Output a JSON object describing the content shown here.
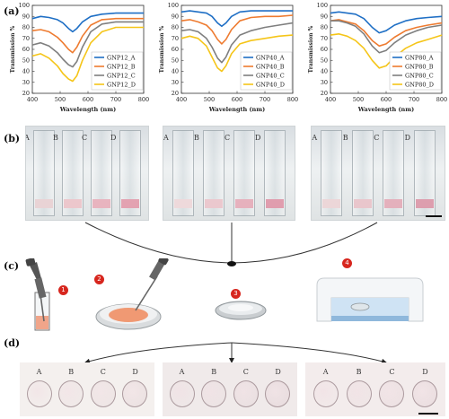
{
  "panels": {
    "a": "(a)",
    "b": "(b)",
    "c": "(c)",
    "d": "(d)"
  },
  "colors": {
    "A": "#1f6fc5",
    "B": "#ee7b30",
    "C": "#7f7f7f",
    "D": "#f5c518"
  },
  "chart_data": [
    {
      "type": "line",
      "xlabel": "Wavelength (nm)",
      "ylabel": "Transmission %",
      "xlim": [
        400,
        800
      ],
      "ylim": [
        20,
        100
      ],
      "xticks": [
        400,
        500,
        600,
        700,
        800
      ],
      "yticks": [
        20,
        30,
        40,
        50,
        60,
        70,
        80,
        90,
        100
      ],
      "legend": "bottom-right",
      "series": [
        {
          "name": "GNP12_A",
          "x": [
            400,
            430,
            460,
            490,
            510,
            530,
            545,
            560,
            580,
            610,
            650,
            700,
            750,
            800
          ],
          "values": [
            88,
            90,
            89,
            87,
            84,
            79,
            76,
            79,
            85,
            90,
            92,
            93,
            93,
            93
          ]
        },
        {
          "name": "GNP12_B",
          "x": [
            400,
            430,
            460,
            490,
            510,
            530,
            545,
            560,
            580,
            610,
            650,
            700,
            750,
            800
          ],
          "values": [
            77,
            78,
            76,
            71,
            66,
            60,
            57,
            62,
            72,
            82,
            87,
            88,
            88,
            88
          ]
        },
        {
          "name": "GNP12_C",
          "x": [
            400,
            430,
            460,
            490,
            510,
            530,
            545,
            560,
            580,
            610,
            650,
            700,
            750,
            800
          ],
          "values": [
            64,
            66,
            63,
            57,
            51,
            46,
            44,
            49,
            62,
            76,
            83,
            85,
            85,
            85
          ]
        },
        {
          "name": "GNP12_D",
          "x": [
            400,
            430,
            460,
            490,
            510,
            530,
            545,
            560,
            580,
            610,
            650,
            700,
            750,
            800
          ],
          "values": [
            54,
            56,
            52,
            45,
            38,
            33,
            31,
            36,
            50,
            66,
            76,
            80,
            80,
            80
          ]
        }
      ]
    },
    {
      "type": "line",
      "xlabel": "Wavelength (nm)",
      "ylabel": "Transmission %",
      "xlim": [
        400,
        800
      ],
      "ylim": [
        20,
        100
      ],
      "xticks": [
        400,
        500,
        600,
        700,
        800
      ],
      "yticks": [
        20,
        30,
        40,
        50,
        60,
        70,
        80,
        90,
        100
      ],
      "legend": "bottom-right",
      "series": [
        {
          "name": "GNP40_A",
          "x": [
            400,
            430,
            460,
            490,
            510,
            530,
            545,
            560,
            580,
            610,
            650,
            700,
            750,
            800
          ],
          "values": [
            94,
            95,
            94,
            93,
            90,
            84,
            81,
            84,
            90,
            94,
            95,
            95,
            95,
            95
          ]
        },
        {
          "name": "GNP40_B",
          "x": [
            400,
            430,
            460,
            490,
            510,
            530,
            545,
            560,
            580,
            610,
            650,
            700,
            750,
            800
          ],
          "values": [
            86,
            87,
            85,
            82,
            77,
            69,
            65,
            69,
            78,
            86,
            89,
            90,
            90,
            91
          ]
        },
        {
          "name": "GNP40_C",
          "x": [
            400,
            430,
            460,
            490,
            510,
            530,
            545,
            560,
            580,
            610,
            650,
            700,
            750,
            800
          ],
          "values": [
            77,
            78,
            76,
            70,
            62,
            52,
            48,
            53,
            64,
            73,
            77,
            80,
            82,
            84
          ]
        },
        {
          "name": "GNP40_D",
          "x": [
            400,
            430,
            460,
            490,
            510,
            530,
            545,
            560,
            580,
            610,
            650,
            700,
            750,
            800
          ],
          "values": [
            70,
            72,
            70,
            63,
            53,
            43,
            40,
            45,
            56,
            65,
            68,
            70,
            72,
            73
          ]
        }
      ]
    },
    {
      "type": "line",
      "xlabel": "Wavelength (nm)",
      "ylabel": "Transmission %",
      "xlim": [
        400,
        800
      ],
      "ylim": [
        20,
        100
      ],
      "xticks": [
        400,
        500,
        600,
        700,
        800
      ],
      "yticks": [
        20,
        30,
        40,
        50,
        60,
        70,
        80,
        90,
        100
      ],
      "legend": "bottom-right",
      "series": [
        {
          "name": "GNP80_A",
          "x": [
            400,
            430,
            460,
            490,
            520,
            550,
            575,
            600,
            630,
            670,
            710,
            750,
            800
          ],
          "values": [
            93,
            94,
            93,
            92,
            88,
            80,
            75,
            77,
            82,
            86,
            88,
            89,
            90
          ]
        },
        {
          "name": "GNP80_B",
          "x": [
            400,
            430,
            460,
            490,
            520,
            550,
            575,
            600,
            630,
            670,
            710,
            750,
            800
          ],
          "values": [
            86,
            87,
            85,
            83,
            77,
            68,
            63,
            65,
            71,
            77,
            80,
            82,
            84
          ]
        },
        {
          "name": "GNP80_C",
          "x": [
            400,
            430,
            460,
            490,
            520,
            550,
            575,
            600,
            630,
            670,
            710,
            750,
            800
          ],
          "values": [
            86,
            86,
            84,
            81,
            74,
            63,
            57,
            59,
            66,
            73,
            77,
            80,
            82
          ]
        },
        {
          "name": "GNP80_D",
          "x": [
            400,
            430,
            460,
            490,
            520,
            550,
            575,
            600,
            630,
            670,
            710,
            750,
            800
          ],
          "values": [
            73,
            74,
            72,
            68,
            61,
            50,
            43,
            45,
            53,
            61,
            66,
            69,
            73
          ]
        }
      ]
    }
  ],
  "photos_b": [
    {
      "labels": [
        "A",
        "B",
        "C",
        "D"
      ],
      "tints": [
        "#e9d3d5",
        "#ecc7cc",
        "#e8b4bf",
        "#e3a2b1"
      ]
    },
    {
      "labels": [
        "A",
        "B",
        "C",
        "D"
      ],
      "tints": [
        "#eed9db",
        "#ebc8ce",
        "#e6b1bd",
        "#e09dae"
      ]
    },
    {
      "labels": [
        "A",
        "B",
        "C",
        "D"
      ],
      "tints": [
        "#ecd6d8",
        "#e9c6cc",
        "#e4b0bc",
        "#dd9eae"
      ]
    }
  ],
  "steps": [
    "1",
    "2",
    "3",
    "4"
  ],
  "photos_d": [
    {
      "labels": [
        "A",
        "B",
        "C",
        "D"
      ]
    },
    {
      "labels": [
        "A",
        "B",
        "C",
        "D"
      ]
    },
    {
      "labels": [
        "A",
        "B",
        "C",
        "D"
      ]
    }
  ]
}
